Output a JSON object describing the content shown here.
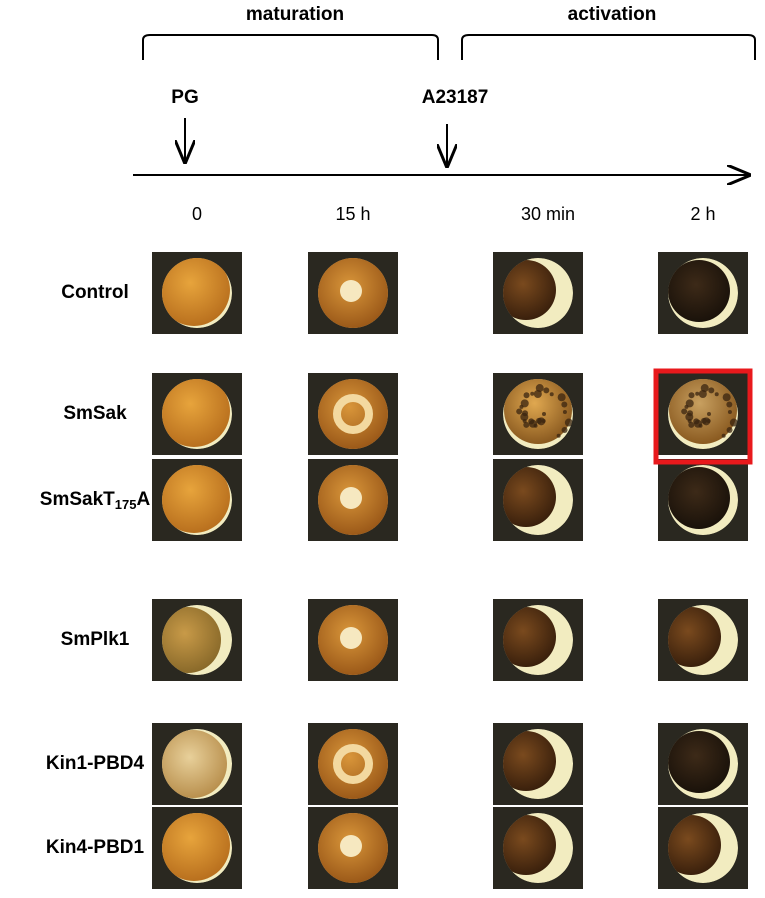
{
  "header": {
    "phases": [
      "maturation",
      "activation"
    ],
    "events": [
      "PG",
      "A23187"
    ]
  },
  "timepoints": [
    "0",
    "15 h",
    "30 min",
    "2 h"
  ],
  "rows": [
    {
      "label": [
        "Control"
      ]
    },
    {
      "label": [
        "SmSak"
      ]
    },
    {
      "label": [
        "SmSakT",
        "175",
        "A"
      ]
    },
    {
      "label": [
        "SmPlk1"
      ]
    },
    {
      "label": [
        "Kin1-PBD4"
      ]
    },
    {
      "label": [
        "Kin4-PBD1"
      ]
    }
  ]
}
